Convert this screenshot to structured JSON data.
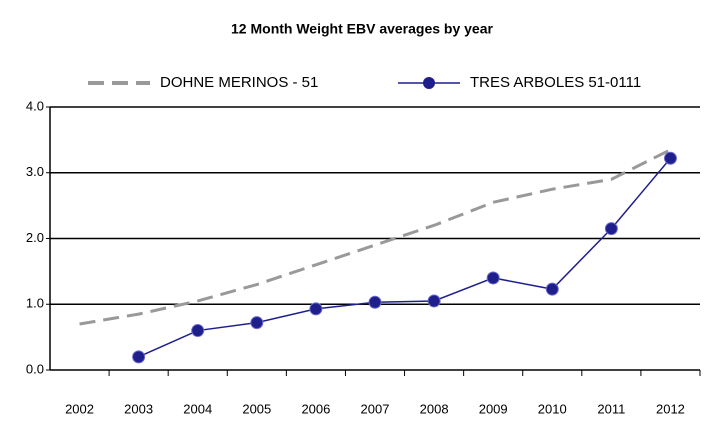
{
  "chart_data": {
    "type": "line",
    "title": "12 Month Weight EBV averages by year",
    "categories": [
      "2002",
      "2003",
      "2004",
      "2005",
      "2006",
      "2007",
      "2008",
      "2009",
      "2010",
      "2011",
      "2012"
    ],
    "series": [
      {
        "name": "DOHNE MERINOS - 51",
        "color": "#999999",
        "dashed": true,
        "values": [
          0.7,
          0.85,
          1.05,
          1.3,
          1.6,
          1.9,
          2.2,
          2.55,
          2.75,
          2.9,
          3.35
        ]
      },
      {
        "name": "TRES ARBOLES 51-0111",
        "color": "#1f1f8c",
        "markers": true,
        "values": [
          null,
          0.2,
          0.6,
          0.72,
          0.93,
          1.03,
          1.05,
          1.4,
          1.23,
          2.15,
          3.22
        ]
      }
    ],
    "ylim": [
      0,
      4
    ],
    "yticks": [
      {
        "value": 0,
        "label": "0.0"
      },
      {
        "value": 1,
        "label": "1.0"
      },
      {
        "value": 2,
        "label": "2.0"
      },
      {
        "value": 3,
        "label": "3.0"
      },
      {
        "value": 4,
        "label": "4.0"
      }
    ],
    "grid": true
  }
}
